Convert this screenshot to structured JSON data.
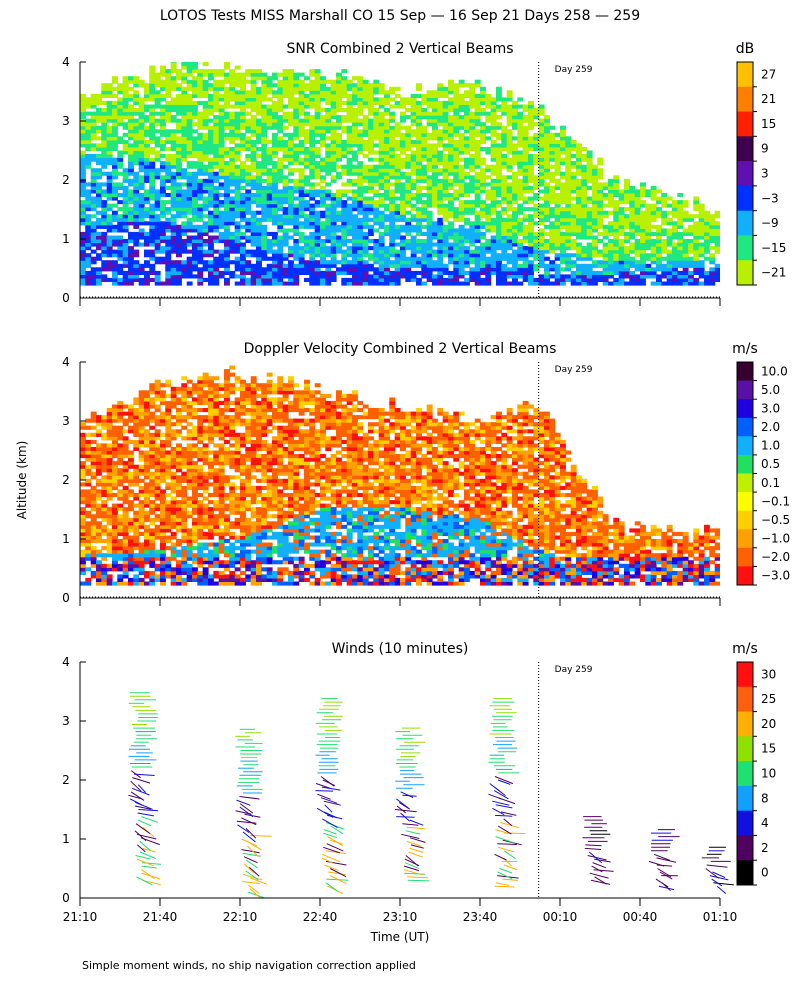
{
  "title": "LOTOS Tests MISS Marshall CO  15 Sep — 16 Sep 21 Days 258 — 259",
  "ylabel": "Altitude (km)",
  "xlabel": "Time (UT)",
  "footnote": "Simple moment winds, no ship navigation correction applied",
  "day_marker_label": "Day 259",
  "day_marker_time": "00:02",
  "x_ticks": [
    "21:10",
    "21:40",
    "22:10",
    "22:40",
    "23:10",
    "23:40",
    "00:10",
    "00:40",
    "01:10"
  ],
  "y_ticks": [
    "0",
    "1",
    "2",
    "3",
    "4"
  ],
  "chart_data": [
    {
      "type": "heatmap",
      "title": "SNR Combined 2 Vertical Beams",
      "unit": "dB",
      "ylim": [
        0,
        4
      ],
      "colorbar": {
        "labels": [
          "27",
          "21",
          "15",
          "9",
          "3",
          "−3",
          "−9",
          "−15",
          "−21"
        ],
        "colors": [
          "#ffc000",
          "#ff8000",
          "#ff2000",
          "#400050",
          "#6010b0",
          "#0030ff",
          "#10b0ff",
          "#20e880",
          "#b8f000"
        ]
      },
      "profile_by_minute": {
        "minutes": [
          0,
          30,
          60,
          90,
          120,
          150,
          170,
          200,
          240
        ],
        "top_km": [
          3.4,
          3.9,
          3.9,
          3.8,
          3.5,
          3.6,
          3.3,
          2.0,
          1.4
        ],
        "green_top_km": [
          3.1,
          3.3,
          3.0,
          2.8,
          2.2,
          2.0,
          1.6,
          1.2,
          1.0
        ],
        "blue_top_km": [
          2.4,
          2.3,
          2.0,
          1.8,
          1.4,
          1.2,
          0.8,
          0.6,
          0.6
        ],
        "dark_top_km": [
          1.2,
          1.3,
          0.9,
          0.6,
          0.5,
          0.5,
          0.4,
          0.4,
          0.5
        ]
      }
    },
    {
      "type": "heatmap",
      "title": "Doppler Velocity Combined 2 Vertical Beams",
      "unit": "m/s",
      "ylim": [
        0,
        4
      ],
      "colorbar": {
        "labels": [
          "10.0",
          "5.0",
          "3.0",
          "2.0",
          "1.0",
          "0.5",
          "0.1",
          "−0.1",
          "−0.5",
          "−1.0",
          "−2.0",
          "−3.0"
        ],
        "colors": [
          "#380030",
          "#5a10a0",
          "#2000e0",
          "#0060ff",
          "#10b0ff",
          "#20e060",
          "#c0f000",
          "#ffff00",
          "#ffd000",
          "#ffa000",
          "#ff6000",
          "#ff1010"
        ]
      },
      "profile_by_minute": {
        "minutes": [
          0,
          30,
          60,
          90,
          120,
          150,
          170,
          200,
          240
        ],
        "top_km": [
          3.0,
          3.6,
          3.8,
          3.5,
          3.2,
          3.0,
          3.3,
          1.2,
          1.1
        ],
        "blue_top_km": [
          0.7,
          0.8,
          1.0,
          1.5,
          1.5,
          1.3,
          0.8,
          0.4,
          0.4
        ]
      }
    },
    {
      "type": "scatter",
      "title": "Winds (10 minutes)",
      "unit": "m/s",
      "ylim": [
        0,
        4
      ],
      "colorbar": {
        "labels": [
          "30",
          "25",
          "20",
          "15",
          "10",
          "8",
          "4",
          "2",
          "0"
        ],
        "colors": [
          "#ff1010",
          "#ff6010",
          "#ffb000",
          "#90e000",
          "#20e070",
          "#10a0ff",
          "#1010e0",
          "#500060",
          "#000000"
        ]
      },
      "profiles": [
        {
          "time_min": 20,
          "top_km": 3.5,
          "bottom_km": 0.3
        },
        {
          "time_min": 60,
          "top_km": 2.9,
          "bottom_km": 0.1
        },
        {
          "time_min": 90,
          "top_km": 3.4,
          "bottom_km": 0.2
        },
        {
          "time_min": 120,
          "top_km": 2.9,
          "bottom_km": 0.3
        },
        {
          "time_min": 155,
          "top_km": 3.4,
          "bottom_km": 0.2
        },
        {
          "time_min": 190,
          "top_km": 1.4,
          "bottom_km": 0.3
        },
        {
          "time_min": 215,
          "top_km": 1.2,
          "bottom_km": 0.2
        },
        {
          "time_min": 235,
          "top_km": 0.9,
          "bottom_km": 0.2
        }
      ]
    }
  ]
}
